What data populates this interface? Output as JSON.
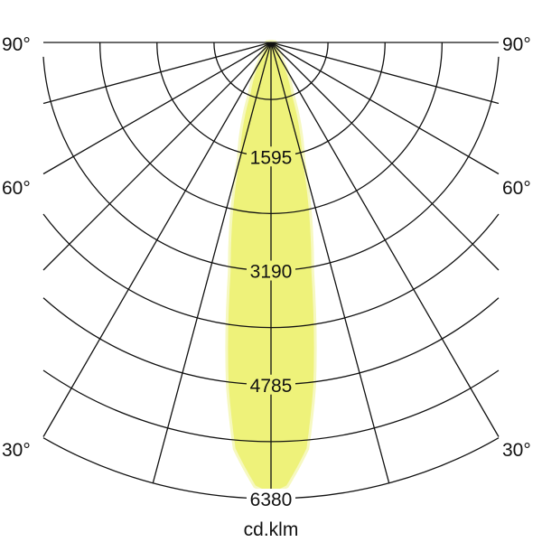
{
  "chart_data": {
    "type": "polar",
    "unit_label": "cd.klm",
    "radial_ticks": [
      1595,
      3190,
      4785,
      6380
    ],
    "radial_max": 6380,
    "radial_grid_step": 797.5,
    "angle_labels": [
      "90°",
      "60°",
      "30°"
    ],
    "angle_grid_step_deg": 15,
    "grid": true,
    "fill_color": "#eef27a",
    "series": [
      {
        "angles_deg": [
          0,
          2,
          5,
          7,
          10,
          15,
          22,
          30,
          40,
          90
        ],
        "values": [
          6300,
          6200,
          5700,
          4850,
          3250,
          1700,
          750,
          300,
          100,
          0
        ]
      }
    ]
  }
}
